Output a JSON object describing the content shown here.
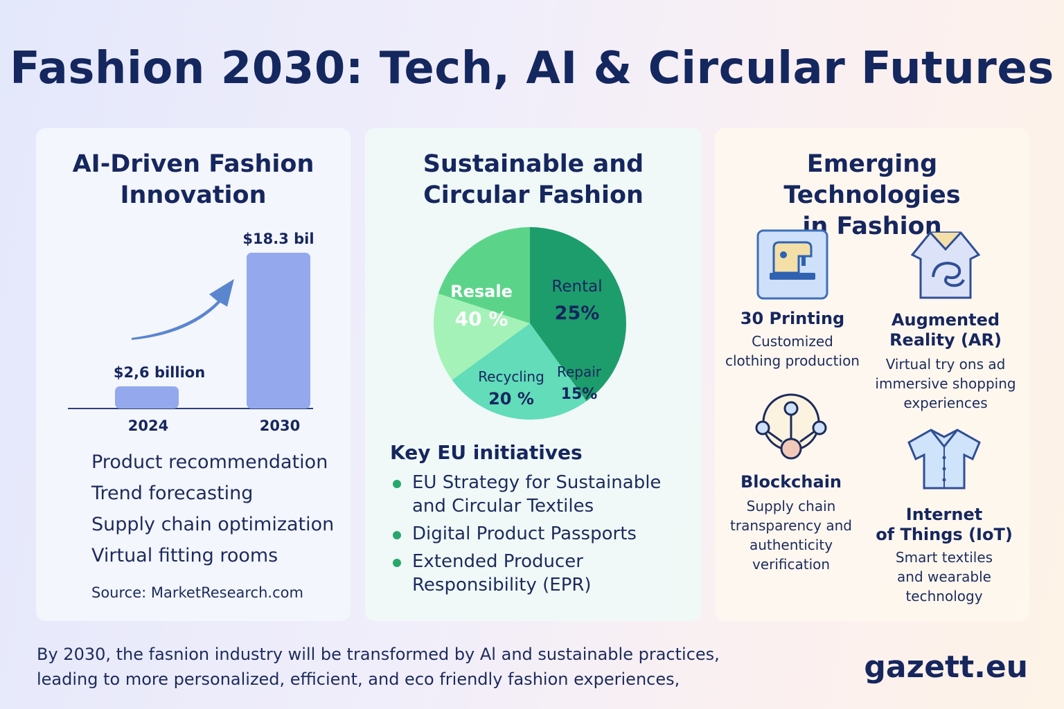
{
  "title": "Fashion 2030: Tech, AI & Circular Futures",
  "panels": {
    "ai": {
      "title_line1": "AI-Driven Fashion",
      "title_line2": "Innovation",
      "uses": [
        "Product recommendation",
        "Trend forecasting",
        "Supply chain optimization",
        "Virtual fitting rooms"
      ],
      "source": "Source: MarketResearch.com"
    },
    "circular": {
      "title_line1": "Sustainable and",
      "title_line2": "Circular Fashion",
      "eu_heading": "Key EU initiatives",
      "eu_items": [
        {
          "line1": "EU Strategy for Sustainable",
          "line2": "and Circular Textiles"
        },
        {
          "line1": "Digital Product Passports",
          "line2": ""
        },
        {
          "line1": "Extended Producer",
          "line2": "Responsibility (EPR)"
        }
      ]
    },
    "tech": {
      "title_line1": "Emerging Technologies",
      "title_line2": "in Fashion",
      "items": [
        {
          "name": "30 Printing",
          "desc": [
            "Customized",
            "clothing production"
          ],
          "icon": "sewing-machine-icon"
        },
        {
          "name_lines": [
            "Augmented",
            "Reality (AR)"
          ],
          "desc": [
            "Virtual try ons ad",
            "immersive shopping",
            "experiences"
          ],
          "icon": "ar-hand-icon"
        },
        {
          "name": "Blockchain",
          "desc": [
            "Supply chain",
            "transparency and",
            "authenticity",
            "verification"
          ],
          "icon": "network-nodes-icon"
        },
        {
          "name_lines": [
            "Internet",
            "of Things (IoT)"
          ],
          "desc": [
            "Smart textiles",
            "and wearable",
            "technology"
          ],
          "icon": "shirt-icon"
        }
      ]
    }
  },
  "footer": {
    "line1": "By 2030, the fasnion industry will be transformed by Al and sustainable practices,",
    "line2": "leading to more personalized, efficient, and eco friendly fashion experiences,"
  },
  "brand": "gazett.eu",
  "chart_data": [
    {
      "type": "bar",
      "categories": [
        "2024",
        "2030"
      ],
      "values": [
        2.6,
        18.3
      ],
      "value_labels": [
        "$2,6 billion",
        "$18.3 bil"
      ],
      "bar_color": "#94a8ee"
    },
    {
      "type": "pie",
      "slices": [
        {
          "label": "Resale",
          "value": 40,
          "value_label": "40 %",
          "color": "#1d9d6c"
        },
        {
          "label": "Rental",
          "value": 25,
          "value_label": "25%",
          "color": "#62dcb9"
        },
        {
          "label": "Repair",
          "value": 15,
          "value_label": "15%",
          "color": "#a4f2b7"
        },
        {
          "label": "Recycling",
          "value": 20,
          "value_label": "20 %",
          "color": "#5bd48a"
        }
      ]
    }
  ]
}
